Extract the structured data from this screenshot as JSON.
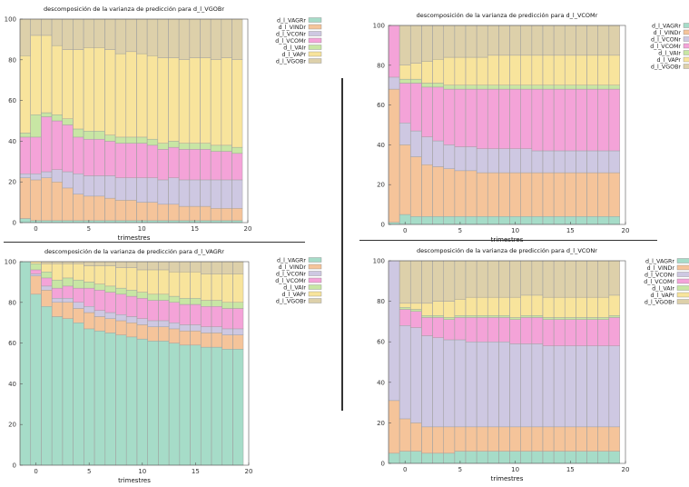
{
  "colors": {
    "d_l_VAGRr": "#a6dcc8",
    "d_l_VINDr": "#f5c49a",
    "d_l_VCONr": "#cec8e2",
    "d_l_VCOMr": "#f4a3d8",
    "d_l_VAIr": "#c8e6a4",
    "d_l_VAPr": "#f8e49c",
    "d_l_VGOBr": "#ddd0aa"
  },
  "chart_data": [
    {
      "type": "bar",
      "stacked": true,
      "title": "descomposición de la varianza de predicción para d_l_VGOBr",
      "xlabel": "trimestres",
      "ylabel": "",
      "xlim": [
        -1.5,
        20
      ],
      "ylim": [
        0,
        100
      ],
      "xticks": [
        0,
        5,
        10,
        15,
        20
      ],
      "yticks": [
        0,
        20,
        40,
        60,
        80,
        100
      ],
      "grid": false,
      "legend_placement": "top-right",
      "show_xlabel": true,
      "x": [
        -1,
        0,
        1,
        2,
        3,
        4,
        5,
        6,
        7,
        8,
        9,
        10,
        11,
        12,
        13,
        14,
        15,
        16,
        17,
        18,
        19
      ],
      "series": [
        {
          "name": "d_l_VAGRr",
          "values": [
            2,
            1,
            1,
            1,
            1,
            1,
            1,
            1,
            1,
            1,
            1,
            1,
            1,
            1,
            1,
            1,
            1,
            1,
            1,
            1,
            1
          ]
        },
        {
          "name": "d_l_VINDr",
          "values": [
            20,
            20,
            21,
            19,
            16,
            13,
            12,
            12,
            11,
            10,
            10,
            9,
            9,
            8,
            8,
            7,
            7,
            7,
            6,
            6,
            6
          ]
        },
        {
          "name": "d_l_VCONr",
          "values": [
            2,
            3,
            3,
            6,
            8,
            10,
            10,
            10,
            11,
            11,
            11,
            12,
            12,
            12,
            13,
            13,
            13,
            13,
            14,
            14,
            14
          ]
        },
        {
          "name": "d_l_VCOMr",
          "values": [
            18,
            18,
            27,
            24,
            23,
            18,
            18,
            18,
            17,
            17,
            17,
            17,
            16,
            15,
            15,
            15,
            15,
            15,
            14,
            14,
            13
          ]
        },
        {
          "name": "d_l_VAIr",
          "values": [
            2,
            11,
            2,
            3,
            3,
            4,
            4,
            4,
            3,
            3,
            3,
            3,
            3,
            3,
            3,
            3,
            3,
            3,
            3,
            3,
            3
          ]
        },
        {
          "name": "d_l_VAPr",
          "values": [
            38,
            39,
            38,
            34,
            34,
            39,
            41,
            41,
            42,
            41,
            42,
            41,
            41,
            42,
            41,
            41,
            42,
            42,
            42,
            43,
            43
          ]
        },
        {
          "name": "d_l_VGOBr",
          "values": [
            18,
            8,
            8,
            13,
            15,
            15,
            14,
            14,
            15,
            17,
            16,
            17,
            18,
            19,
            19,
            20,
            19,
            19,
            20,
            19,
            20
          ]
        }
      ]
    },
    {
      "type": "bar",
      "stacked": true,
      "title": "descomposición de la varianza de predicción para d_l_VCOMr",
      "xlabel": "trimestres",
      "ylabel": "",
      "xlim": [
        -1.5,
        20
      ],
      "ylim": [
        0,
        100
      ],
      "xticks": [
        0,
        5,
        10,
        15,
        20
      ],
      "yticks": [
        0,
        20,
        40,
        60,
        80,
        100
      ],
      "grid": false,
      "legend_placement": "top-right",
      "show_xlabel": true,
      "x": [
        -1,
        0,
        1,
        2,
        3,
        4,
        5,
        6,
        7,
        8,
        9,
        10,
        11,
        12,
        13,
        14,
        15,
        16,
        17,
        18,
        19
      ],
      "series": [
        {
          "name": "d_l_VAGRr",
          "values": [
            1,
            5,
            4,
            4,
            4,
            4,
            4,
            4,
            4,
            4,
            4,
            4,
            4,
            4,
            4,
            4,
            4,
            4,
            4,
            4,
            4
          ]
        },
        {
          "name": "d_l_VINDr",
          "values": [
            67,
            35,
            30,
            26,
            25,
            24,
            23,
            23,
            22,
            22,
            22,
            22,
            22,
            22,
            22,
            22,
            22,
            22,
            22,
            22,
            22
          ]
        },
        {
          "name": "d_l_VCONr",
          "values": [
            6,
            11,
            13,
            14,
            13,
            12,
            12,
            12,
            12,
            12,
            12,
            12,
            12,
            11,
            11,
            11,
            11,
            11,
            11,
            11,
            11
          ]
        },
        {
          "name": "d_l_VCOMr",
          "values": [
            26,
            20,
            24,
            25,
            27,
            28,
            29,
            29,
            30,
            30,
            30,
            30,
            30,
            31,
            31,
            31,
            31,
            31,
            31,
            31,
            31
          ]
        },
        {
          "name": "d_l_VAIr",
          "values": [
            0,
            2,
            2,
            2,
            2,
            2,
            2,
            2,
            2,
            2,
            2,
            2,
            2,
            2,
            2,
            2,
            2,
            2,
            2,
            2,
            2
          ]
        },
        {
          "name": "d_l_VAPr",
          "values": [
            0,
            7,
            8,
            11,
            12,
            14,
            14,
            14,
            14,
            15,
            15,
            15,
            15,
            15,
            15,
            15,
            15,
            15,
            15,
            15,
            15
          ]
        },
        {
          "name": "d_l_VGOBr",
          "values": [
            0,
            20,
            19,
            18,
            17,
            16,
            16,
            16,
            16,
            15,
            15,
            15,
            15,
            15,
            15,
            15,
            15,
            15,
            15,
            15,
            15
          ]
        }
      ]
    },
    {
      "type": "bar",
      "stacked": true,
      "title": "descomposición de la varianza de predicción para d_l_VAGRr",
      "xlabel": "trimestres",
      "ylabel": "",
      "xlim": [
        -1.5,
        20
      ],
      "ylim": [
        0,
        100
      ],
      "xticks": [
        0,
        5,
        10,
        15,
        20
      ],
      "yticks": [
        0,
        20,
        40,
        60,
        80,
        100
      ],
      "grid": false,
      "legend_placement": "top-right",
      "show_xlabel": true,
      "x": [
        -1,
        0,
        1,
        2,
        3,
        4,
        5,
        6,
        7,
        8,
        9,
        10,
        11,
        12,
        13,
        14,
        15,
        16,
        17,
        18,
        19
      ],
      "series": [
        {
          "name": "d_l_VAGRr",
          "values": [
            100,
            84,
            78,
            73,
            72,
            70,
            67,
            66,
            65,
            64,
            63,
            62,
            61,
            61,
            60,
            59,
            59,
            58,
            58,
            57,
            57
          ]
        },
        {
          "name": "d_l_VINDr",
          "values": [
            0,
            9,
            8,
            7,
            8,
            7,
            8,
            7,
            7,
            7,
            7,
            7,
            7,
            7,
            7,
            7,
            7,
            7,
            7,
            7,
            7
          ]
        },
        {
          "name": "d_l_VCONr",
          "values": [
            0,
            1,
            2,
            2,
            2,
            3,
            3,
            3,
            3,
            3,
            3,
            3,
            3,
            3,
            3,
            3,
            3,
            3,
            3,
            3,
            3
          ]
        },
        {
          "name": "d_l_VCOMr",
          "values": [
            0,
            2,
            4,
            5,
            6,
            7,
            9,
            10,
            10,
            10,
            10,
            10,
            10,
            10,
            10,
            10,
            10,
            10,
            10,
            10,
            10
          ]
        },
        {
          "name": "d_l_VAIr",
          "values": [
            0,
            3,
            3,
            4,
            4,
            4,
            3,
            3,
            3,
            3,
            3,
            3,
            3,
            3,
            3,
            3,
            3,
            3,
            3,
            3,
            3
          ]
        },
        {
          "name": "d_l_VAPr",
          "values": [
            0,
            1,
            4,
            8,
            7,
            8,
            8,
            9,
            10,
            10,
            11,
            11,
            12,
            12,
            12,
            13,
            13,
            13,
            13,
            14,
            14
          ]
        },
        {
          "name": "d_l_VGOBr",
          "values": [
            0,
            0,
            1,
            1,
            1,
            1,
            2,
            2,
            2,
            3,
            3,
            4,
            4,
            4,
            5,
            5,
            5,
            6,
            6,
            6,
            6
          ]
        }
      ]
    },
    {
      "type": "bar",
      "stacked": true,
      "title": "descomposición de la varianza de predicción para d_l_VCONr",
      "xlabel": "trimestres",
      "ylabel": "",
      "xlim": [
        -1.5,
        20
      ],
      "ylim": [
        0,
        100
      ],
      "xticks": [
        0,
        5,
        10,
        15,
        20
      ],
      "yticks": [
        0,
        20,
        40,
        60,
        80,
        100
      ],
      "grid": false,
      "legend_placement": "top-right",
      "show_xlabel": true,
      "x": [
        -1,
        0,
        1,
        2,
        3,
        4,
        5,
        6,
        7,
        8,
        9,
        10,
        11,
        12,
        13,
        14,
        15,
        16,
        17,
        18,
        19
      ],
      "series": [
        {
          "name": "d_l_VAGRr",
          "values": [
            5,
            6,
            6,
            5,
            5,
            5,
            6,
            6,
            6,
            6,
            6,
            6,
            6,
            6,
            6,
            6,
            6,
            6,
            6,
            6,
            6
          ]
        },
        {
          "name": "d_l_VINDr",
          "values": [
            26,
            16,
            14,
            13,
            13,
            13,
            12,
            12,
            12,
            12,
            12,
            12,
            12,
            12,
            12,
            12,
            12,
            12,
            12,
            12,
            12
          ]
        },
        {
          "name": "d_l_VCONr",
          "values": [
            69,
            46,
            47,
            45,
            44,
            43,
            43,
            42,
            42,
            42,
            42,
            41,
            41,
            41,
            40,
            40,
            40,
            40,
            40,
            40,
            40
          ]
        },
        {
          "name": "d_l_VCOMr",
          "values": [
            0,
            8,
            8,
            9,
            10,
            10,
            11,
            12,
            12,
            12,
            12,
            12,
            13,
            13,
            13,
            13,
            13,
            13,
            13,
            13,
            14
          ]
        },
        {
          "name": "d_l_VAIr",
          "values": [
            0,
            1,
            1,
            1,
            1,
            1,
            1,
            1,
            1,
            1,
            1,
            1,
            1,
            1,
            1,
            1,
            1,
            1,
            1,
            1,
            1
          ]
        },
        {
          "name": "d_l_VAPr",
          "values": [
            0,
            2,
            3,
            6,
            7,
            8,
            8,
            9,
            9,
            9,
            9,
            10,
            10,
            10,
            10,
            10,
            10,
            10,
            10,
            10,
            10
          ]
        },
        {
          "name": "d_l_VGOBr",
          "values": [
            0,
            21,
            21,
            21,
            20,
            20,
            19,
            18,
            18,
            18,
            18,
            18,
            17,
            17,
            18,
            18,
            18,
            18,
            18,
            18,
            17
          ]
        }
      ]
    }
  ]
}
